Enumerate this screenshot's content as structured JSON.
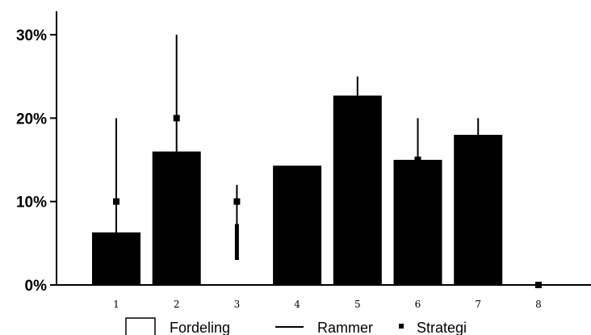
{
  "chart_data": {
    "type": "bar",
    "title": "",
    "xlabel": "",
    "ylabel": "",
    "categories": [
      "1",
      "2",
      "3",
      "4",
      "5",
      "6",
      "7",
      "8"
    ],
    "ylim": [
      0,
      30
    ],
    "y_ticks": [
      "0%",
      "10%",
      "20%",
      "30%"
    ],
    "y_tick_values": [
      0,
      10,
      20,
      30
    ],
    "grid": false,
    "legend_position": "bottom",
    "series": [
      {
        "name": "Fordeling",
        "kind": "bar",
        "color": "#000000",
        "values": [
          6.3,
          16.0,
          0,
          14.3,
          22.7,
          15.0,
          18.0,
          0
        ]
      },
      {
        "name": "Rammer",
        "kind": "range",
        "color": "#000000",
        "ranges": [
          [
            0,
            20
          ],
          [
            16,
            30
          ],
          [
            3,
            12
          ],
          [
            null,
            null
          ],
          [
            22.7,
            25
          ],
          [
            15,
            20
          ],
          [
            18,
            20
          ],
          [
            0,
            0
          ]
        ]
      },
      {
        "name": "Strategi",
        "kind": "point",
        "color": "#000000",
        "values": [
          10,
          20,
          10,
          null,
          null,
          15,
          null,
          0
        ]
      }
    ]
  },
  "legend": {
    "fordeling": "Fordeling",
    "rammer": "Rammer",
    "strategi": "Strategi"
  }
}
